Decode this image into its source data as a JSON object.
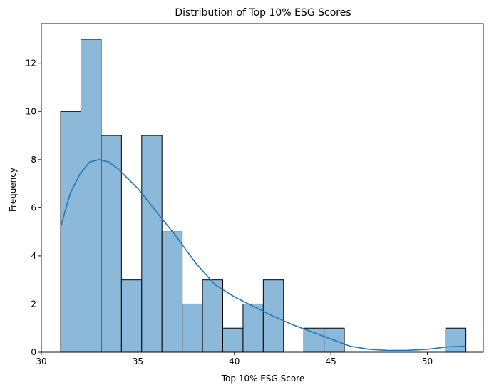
{
  "chart_data": {
    "type": "bar",
    "subtype": "histogram-with-kde",
    "title": "Distribution of Top 10% ESG Scores",
    "xlabel": "Top 10% ESG Score",
    "ylabel": "Frequency",
    "xlim": [
      30.0,
      52.9
    ],
    "ylim": [
      0,
      13.65
    ],
    "xticks": [
      30,
      35,
      40,
      45,
      50
    ],
    "yticks": [
      0,
      2,
      4,
      6,
      8,
      10,
      12
    ],
    "bin_start": 31.0,
    "bin_width": 1.05,
    "counts": [
      10,
      13,
      9,
      3,
      9,
      5,
      2,
      3,
      1,
      2,
      3,
      0,
      1,
      1,
      0,
      0,
      0,
      0,
      0,
      1
    ],
    "bar_color": "#8cb8da",
    "bar_edge_color": "#000000",
    "kde": {
      "color": "#1f77b4",
      "x": [
        31.0,
        31.5,
        32.0,
        32.5,
        33.0,
        33.5,
        34.0,
        34.5,
        35.0,
        35.5,
        36.0,
        37.0,
        38.0,
        39.0,
        40.0,
        41.0,
        42.0,
        43.0,
        44.0,
        45.0,
        46.0,
        47.0,
        48.0,
        49.0,
        50.0,
        51.0,
        52.0
      ],
      "y": [
        5.2,
        6.6,
        7.4,
        7.9,
        8.0,
        7.9,
        7.6,
        7.2,
        6.8,
        6.3,
        5.8,
        4.8,
        3.7,
        2.8,
        2.3,
        1.9,
        1.5,
        1.15,
        0.85,
        0.55,
        0.25,
        0.12,
        0.07,
        0.08,
        0.12,
        0.22,
        0.25
      ]
    },
    "grid": false,
    "legend": "none"
  }
}
